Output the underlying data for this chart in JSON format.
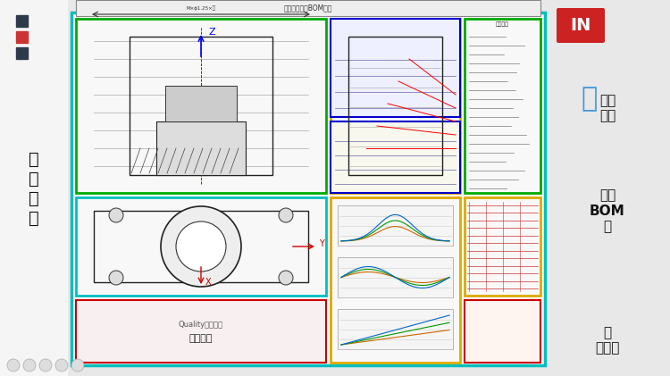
{
  "bg_color": "#e8e8e8",
  "main_drawing_bg": "#ffffff",
  "left_panel_bg": "#f0f0f0",
  "right_panel_bg": "#f0f0f0",
  "left_label": "结\n构\n尺\n寸",
  "right_labels": [
    "技术\n要求",
    "零件\nBOM\n表",
    "基\n础信息"
  ],
  "box_colors": {
    "structural_top": "#e8f0ff",
    "structural_bottom": "#e8f0ff",
    "cyan_border": "#00bfbf",
    "green_border": "#00aa00",
    "yellow_border": "#ddaa00",
    "red_border": "#cc0000",
    "blue_border": "#0000cc",
    "tech_req": "#ffffff",
    "bom": "#ffffff",
    "performance": "#ffffff",
    "bottom_info": "#ffffff"
  },
  "squares_colors": [
    "#2d3a4a",
    "#cc3333",
    "#2d3a4a"
  ],
  "logo_bg": "#cc2222",
  "logo_text": "IN",
  "bird_color": "#4499dd",
  "bottom_text": "Quality用质量领基础信息"
}
